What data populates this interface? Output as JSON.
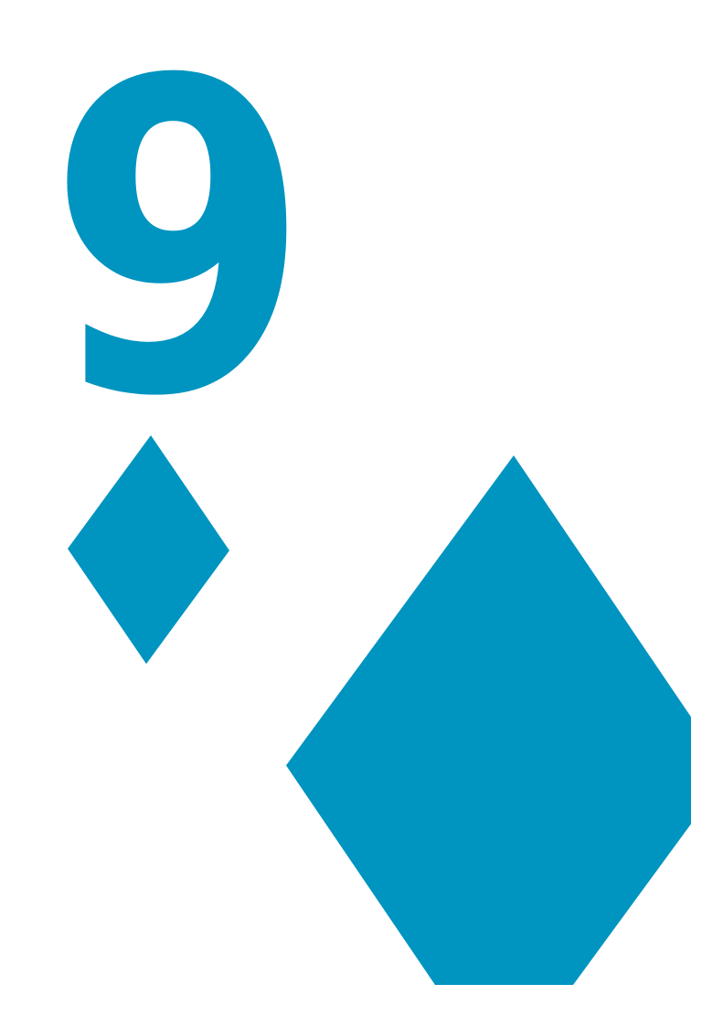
{
  "card": {
    "rank": "9",
    "suit": "diamonds",
    "color": "#0094c0",
    "background": "#ffffff"
  },
  "icons": {
    "corner_pip": "diamond-icon",
    "center_pip": "diamond-icon"
  }
}
